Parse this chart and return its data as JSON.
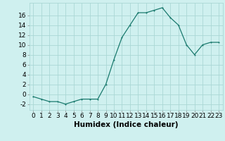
{
  "x": [
    0,
    1,
    2,
    3,
    4,
    5,
    6,
    7,
    8,
    9,
    10,
    11,
    12,
    13,
    14,
    15,
    16,
    17,
    18,
    19,
    20,
    21,
    22,
    23
  ],
  "y": [
    -0.5,
    -1.0,
    -1.5,
    -1.5,
    -2.0,
    -1.5,
    -1.0,
    -1.0,
    -1.0,
    2.0,
    7.0,
    11.5,
    14.0,
    16.5,
    16.5,
    17.0,
    17.5,
    15.5,
    14.0,
    10.0,
    8.0,
    10.0,
    10.5,
    10.5
  ],
  "line_color": "#1a7a6e",
  "marker": ".",
  "marker_size": 3,
  "bg_color": "#cff0ef",
  "grid_color": "#aad8d5",
  "xlabel": "Humidex (Indice chaleur)",
  "xlim": [
    -0.5,
    23.5
  ],
  "ylim": [
    -3.2,
    18.5
  ],
  "yticks": [
    -2,
    0,
    2,
    4,
    6,
    8,
    10,
    12,
    14,
    16
  ],
  "xticks": [
    0,
    1,
    2,
    3,
    4,
    5,
    6,
    7,
    8,
    9,
    10,
    11,
    12,
    13,
    14,
    15,
    16,
    17,
    18,
    19,
    20,
    21,
    22,
    23
  ],
  "tick_fontsize": 6.5,
  "label_fontsize": 7.5
}
